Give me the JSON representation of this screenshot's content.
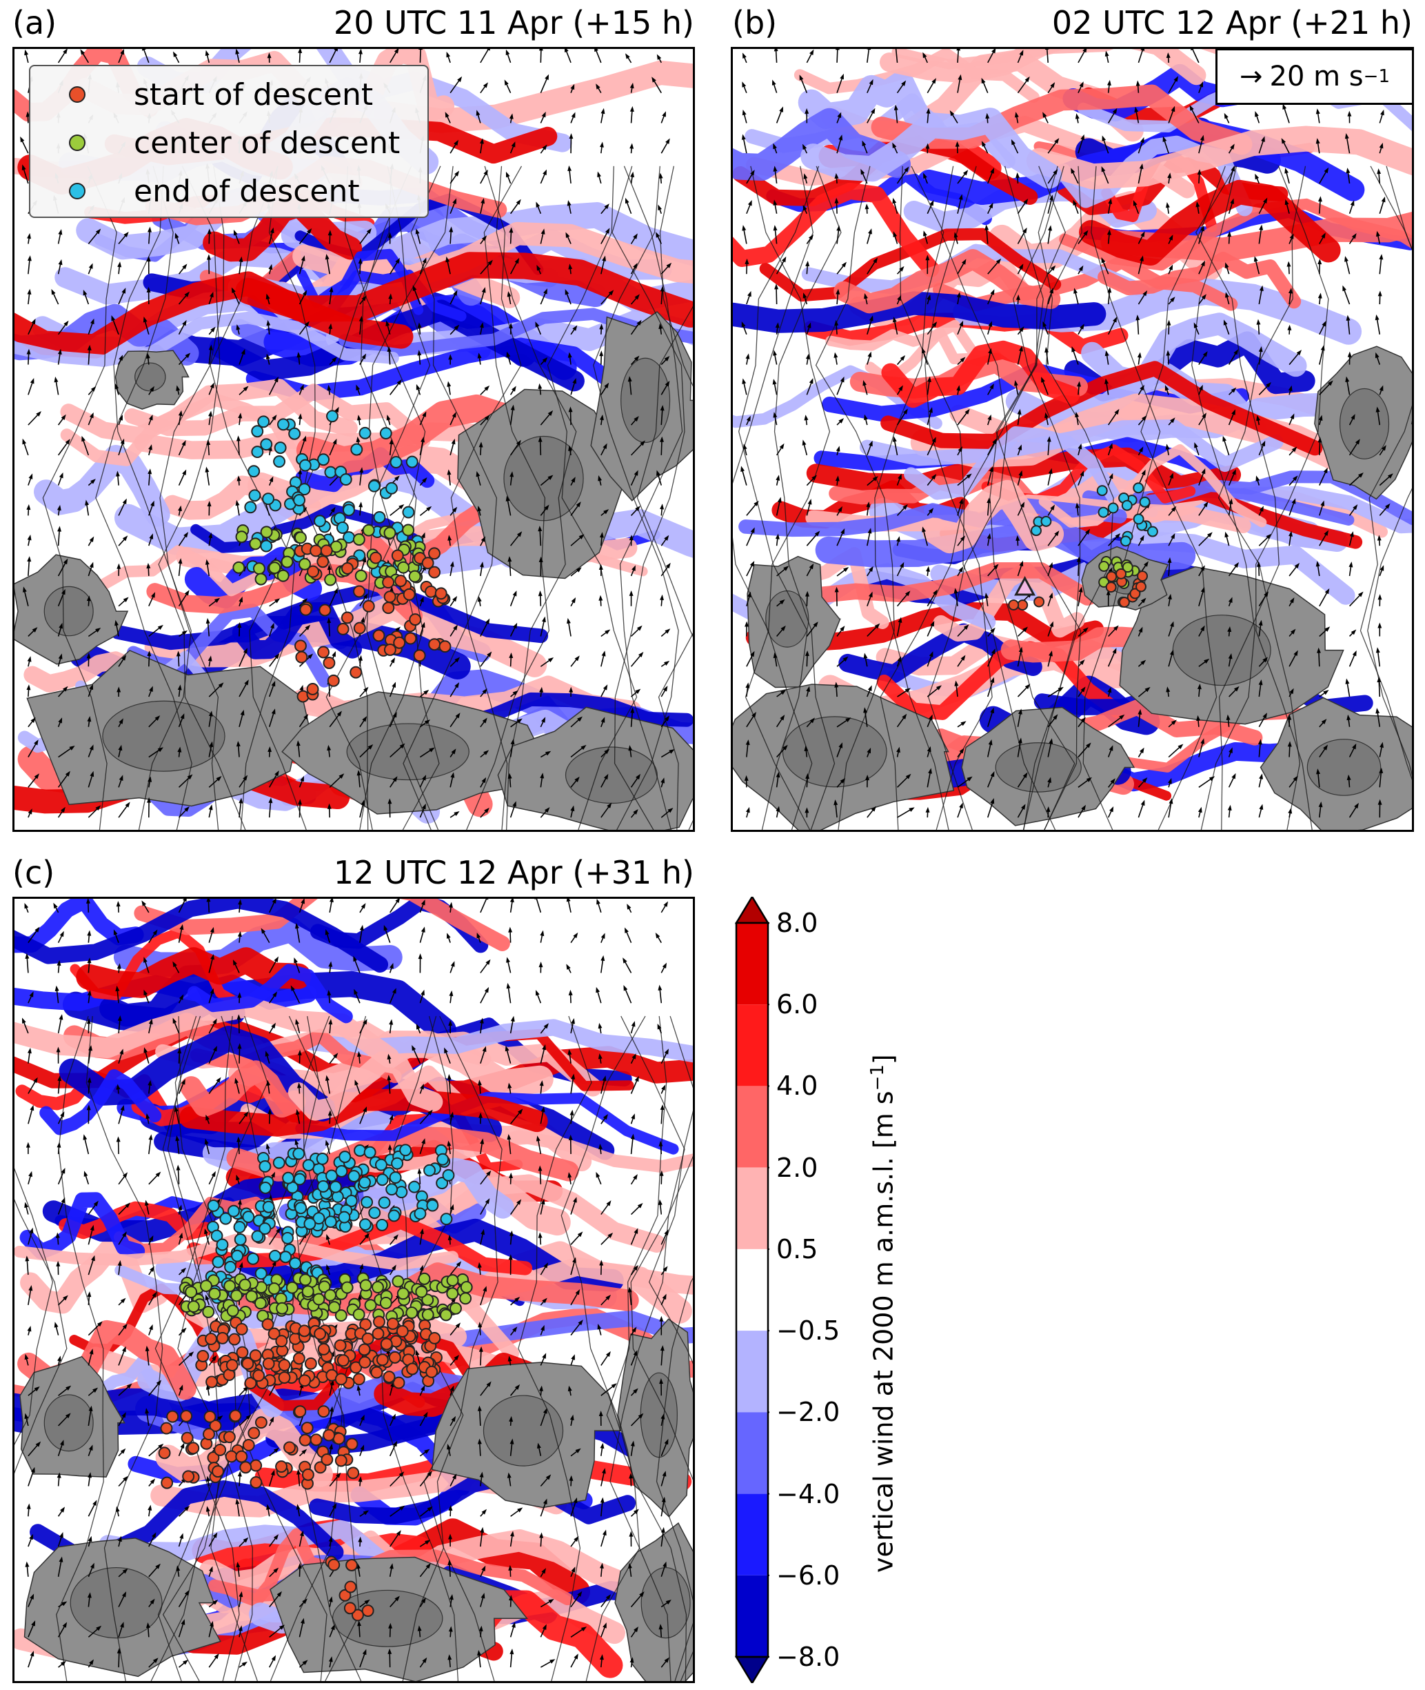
{
  "panels": [
    {
      "id": "a",
      "label": "(a)",
      "time": "20 UTC 11 Apr (+15 h)"
    },
    {
      "id": "b",
      "label": "(b)",
      "time": "02 UTC 12 Apr (+21 h)"
    },
    {
      "id": "c",
      "label": "(c)",
      "time": "12 UTC 12 Apr (+31 h)"
    }
  ],
  "legend": [
    {
      "label": "start of descent",
      "color": "#e8502a"
    },
    {
      "label": "center of descent",
      "color": "#9ccc3c"
    },
    {
      "label": "end of descent",
      "color": "#2cc0e6"
    }
  ],
  "wind_scale": {
    "arrow": "→",
    "value": "20 m s",
    "exp": "−1"
  },
  "colorbar": {
    "title": "vertical wind at 2000 m a.m.s.l. [m s",
    "title_exp": "−1",
    "title_end": "]",
    "ticks": [
      "8.0",
      "6.0",
      "4.0",
      "2.0",
      "0.5",
      "−0.5",
      "−2.0",
      "−4.0",
      "−6.0",
      "−8.0"
    ],
    "colors_top_to_bottom": [
      "#b20000",
      "#e60000",
      "#ff1a1a",
      "#ff6666",
      "#ffb3b3",
      "#ffffff",
      "#b3b3ff",
      "#6666ff",
      "#1a1aff",
      "#0000cc",
      "#00008b"
    ]
  },
  "chart_data": {
    "type": "map-overlay",
    "field": "vertical wind at 2000 m a.m.s.l.",
    "units": "m s^-1",
    "levels": [
      -8.0,
      -6.0,
      -4.0,
      -2.0,
      -0.5,
      0.5,
      2.0,
      4.0,
      6.0,
      8.0
    ],
    "extend": "both",
    "trajectory_points": "start / center / end of descent scatter per panel",
    "reference_vector": "20 m s^-1"
  }
}
